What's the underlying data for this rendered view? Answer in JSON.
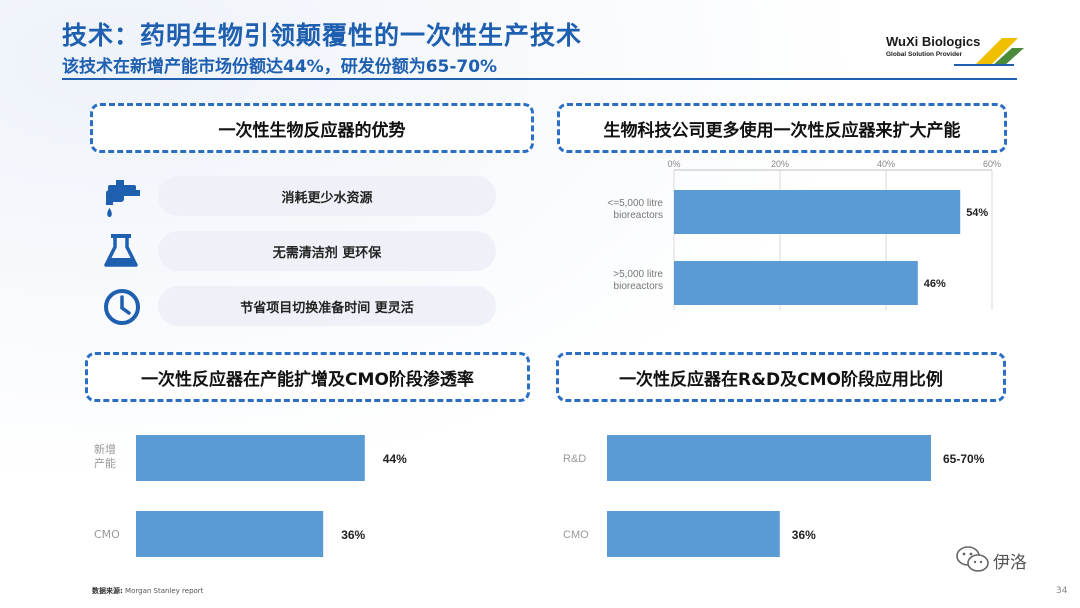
{
  "header": {
    "title": "技术：药明生物引领颠覆性的一次性生产技术",
    "subtitle": "该技术在新增产能市场份额达44%，研发份额为65-70%"
  },
  "logo": {
    "name": "WuXi Biologics",
    "tagline": "Global Solution Provider",
    "colors": [
      "#f0c000",
      "#4a8a3a",
      "#1f5fb0"
    ]
  },
  "advantages": {
    "heading": "一次性生物反应器的优势",
    "items": [
      {
        "label": "消耗更少水资源",
        "icon": "faucet-icon"
      },
      {
        "label": "无需清洁剂 更环保",
        "icon": "flask-icon"
      },
      {
        "label": "节省项目切换准备时间 更灵活",
        "icon": "clock-icon"
      }
    ]
  },
  "sections": {
    "top_right_heading": "生物科技公司更多使用一次性反应器来扩大产能",
    "bottom_left_heading": "一次性反应器在产能扩增及CMO阶段渗透率",
    "bottom_right_heading": "一次性反应器在R&D及CMO阶段应用比例"
  },
  "chart_data": [
    {
      "type": "bar",
      "orientation": "horizontal",
      "categories": [
        "<=5,000 litre bioreactors",
        ">5,000 litre bioreactors"
      ],
      "values": [
        54,
        46
      ],
      "value_labels": [
        "54%",
        "46%"
      ],
      "xlim": [
        0,
        60
      ],
      "xticks": [
        "0%",
        "20%",
        "40%",
        "60%"
      ],
      "grid": true,
      "color": "#5b9bd5"
    },
    {
      "type": "bar",
      "orientation": "horizontal",
      "categories": [
        "新增产能",
        "CMO"
      ],
      "values": [
        44,
        36
      ],
      "value_labels": [
        "44%",
        "36%"
      ],
      "color": "#5b9bd5"
    },
    {
      "type": "bar",
      "orientation": "horizontal",
      "categories": [
        "R&D",
        "CMO"
      ],
      "values": [
        67.5,
        36
      ],
      "value_labels": [
        "65-70%",
        "36%"
      ],
      "color": "#5b9bd5"
    }
  ],
  "footer": {
    "source_label": "数据来源:",
    "source_text": "Morgan Stanley report",
    "watermark": "伊洛",
    "page_number": "34"
  }
}
